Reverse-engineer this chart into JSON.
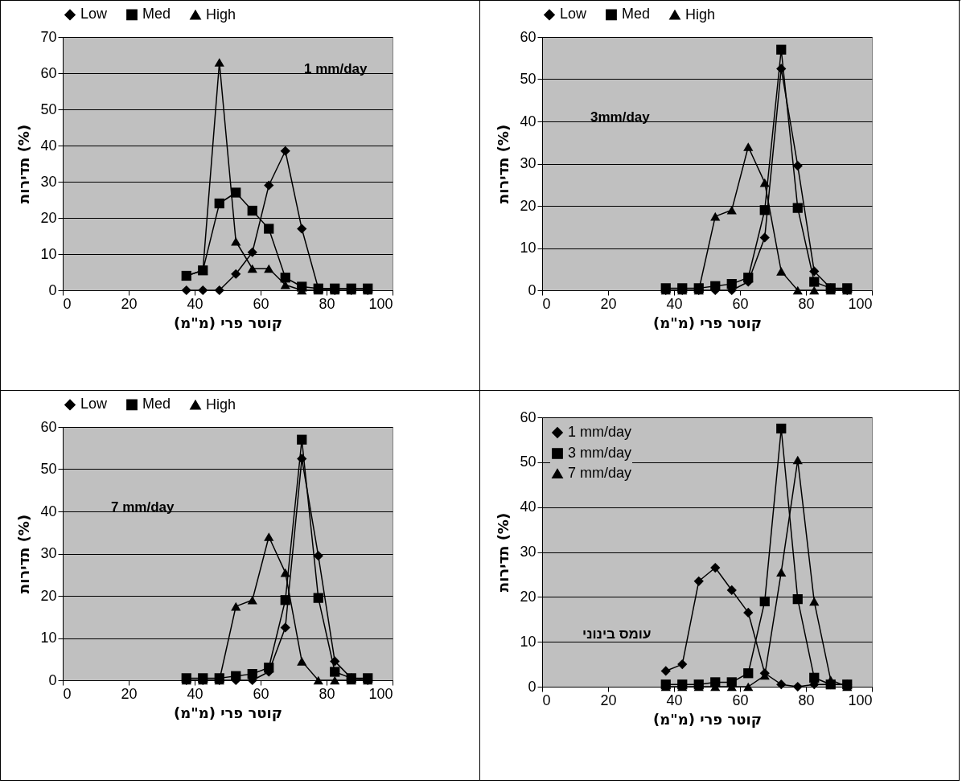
{
  "chart_data": [
    {
      "type": "line",
      "xlabel": "קוטר פרי (מ\"מ)",
      "ylabel": "תדירות (%)",
      "annotations": [
        "1 mm/day"
      ],
      "xlim": [
        0,
        100
      ],
      "xticks": [
        0,
        20,
        40,
        60,
        80,
        100
      ],
      "ylim": [
        0,
        70
      ],
      "yticks": [
        0,
        10,
        20,
        30,
        40,
        50,
        60,
        70
      ],
      "grid": "y",
      "legend": "top",
      "x": [
        37.5,
        42.5,
        47.5,
        52.5,
        57.5,
        62.5,
        67.5,
        72.5,
        77.5,
        82.5,
        87.5,
        92.5
      ],
      "series": [
        {
          "name": "Low",
          "color": "#000000",
          "marker": "diamond",
          "values": [
            0,
            0,
            0,
            4.5,
            10.5,
            29,
            38.5,
            17,
            0.5,
            0,
            0,
            0
          ]
        },
        {
          "name": "Med",
          "color": "#000000",
          "marker": "square",
          "values": [
            4,
            5.5,
            24,
            27,
            22,
            17,
            3.5,
            1,
            0.5,
            0.5,
            0.5,
            0.5
          ]
        },
        {
          "name": "High",
          "color": "#000000",
          "marker": "triangle",
          "values": [
            4,
            5.5,
            63,
            13.5,
            6,
            6,
            1.5,
            0,
            0,
            0,
            0,
            0
          ]
        }
      ]
    },
    {
      "type": "line",
      "xlabel": "קוטר פרי (מ\"מ)",
      "ylabel": "תדירות (%)",
      "annotations": [
        "3mm/day"
      ],
      "xlim": [
        0,
        100
      ],
      "xticks": [
        0,
        20,
        40,
        60,
        80,
        100
      ],
      "ylim": [
        0,
        60
      ],
      "yticks": [
        0,
        10,
        20,
        30,
        40,
        50,
        60
      ],
      "grid": "y",
      "legend": "top",
      "x": [
        37.5,
        42.5,
        47.5,
        52.5,
        57.5,
        62.5,
        67.5,
        72.5,
        77.5,
        82.5,
        87.5,
        92.5
      ],
      "series": [
        {
          "name": "Low",
          "color": "#000000",
          "marker": "diamond",
          "values": [
            0,
            0,
            0,
            0,
            0,
            2,
            12.5,
            52.5,
            29.5,
            4.5,
            0.5,
            0
          ]
        },
        {
          "name": "Med",
          "color": "#000000",
          "marker": "square",
          "values": [
            0.5,
            0.5,
            0.5,
            1,
            1.5,
            3,
            19,
            57,
            19.5,
            2,
            0.5,
            0.5
          ]
        },
        {
          "name": "High",
          "color": "#000000",
          "marker": "triangle",
          "values": [
            0,
            0,
            0,
            17.5,
            19,
            34,
            25.5,
            4.5,
            0,
            0,
            0,
            0
          ]
        }
      ]
    },
    {
      "type": "line",
      "xlabel": "קוטר פרי (מ\"מ)",
      "ylabel": "תדירות (%)",
      "annotations": [
        "7 mm/day"
      ],
      "xlim": [
        0,
        100
      ],
      "xticks": [
        0,
        20,
        40,
        60,
        80,
        100
      ],
      "ylim": [
        0,
        60
      ],
      "yticks": [
        0,
        10,
        20,
        30,
        40,
        50,
        60
      ],
      "grid": "y",
      "legend": "top",
      "x": [
        37.5,
        42.5,
        47.5,
        52.5,
        57.5,
        62.5,
        67.5,
        72.5,
        77.5,
        82.5,
        87.5,
        92.5
      ],
      "series": [
        {
          "name": "Low",
          "color": "#000000",
          "marker": "diamond",
          "values": [
            0,
            0,
            0,
            0,
            0,
            2,
            12.5,
            52.5,
            29.5,
            4.5,
            0.5,
            0
          ]
        },
        {
          "name": "Med",
          "color": "#000000",
          "marker": "square",
          "values": [
            0.5,
            0.5,
            0.5,
            1,
            1.5,
            3,
            19,
            57,
            19.5,
            2,
            0.5,
            0.5
          ]
        },
        {
          "name": "High",
          "color": "#000000",
          "marker": "triangle",
          "values": [
            0,
            0,
            0,
            17.5,
            19,
            34,
            25.5,
            4.5,
            0,
            0,
            0,
            0
          ]
        }
      ]
    },
    {
      "type": "line",
      "xlabel": "קוטר פרי (מ\"מ)",
      "ylabel": "תדירות (%)",
      "annotations": [
        "עומס בינוני"
      ],
      "xlim": [
        0,
        100
      ],
      "xticks": [
        0,
        20,
        40,
        60,
        80,
        100
      ],
      "ylim": [
        0,
        60
      ],
      "yticks": [
        0,
        10,
        20,
        30,
        40,
        50,
        60
      ],
      "grid": "y",
      "legend": "top left",
      "x": [
        37.5,
        42.5,
        47.5,
        52.5,
        57.5,
        62.5,
        67.5,
        72.5,
        77.5,
        82.5,
        87.5,
        92.5
      ],
      "series": [
        {
          "name": "1 mm/day",
          "color": "#000000",
          "marker": "diamond",
          "values": [
            3.5,
            5,
            23.5,
            26.5,
            21.5,
            16.5,
            3,
            0.5,
            0,
            0.5,
            0.5,
            0.5
          ]
        },
        {
          "name": "3 mm/day",
          "color": "#000000",
          "marker": "square",
          "values": [
            0.5,
            0.5,
            0.5,
            1,
            1,
            3,
            19,
            57.5,
            19.5,
            2,
            0.5,
            0.5
          ]
        },
        {
          "name": "7 mm/day",
          "color": "#000000",
          "marker": "triangle",
          "values": [
            0,
            0,
            0,
            0,
            0,
            0,
            2.5,
            25.5,
            50.5,
            19,
            1.5,
            0
          ]
        }
      ]
    }
  ]
}
